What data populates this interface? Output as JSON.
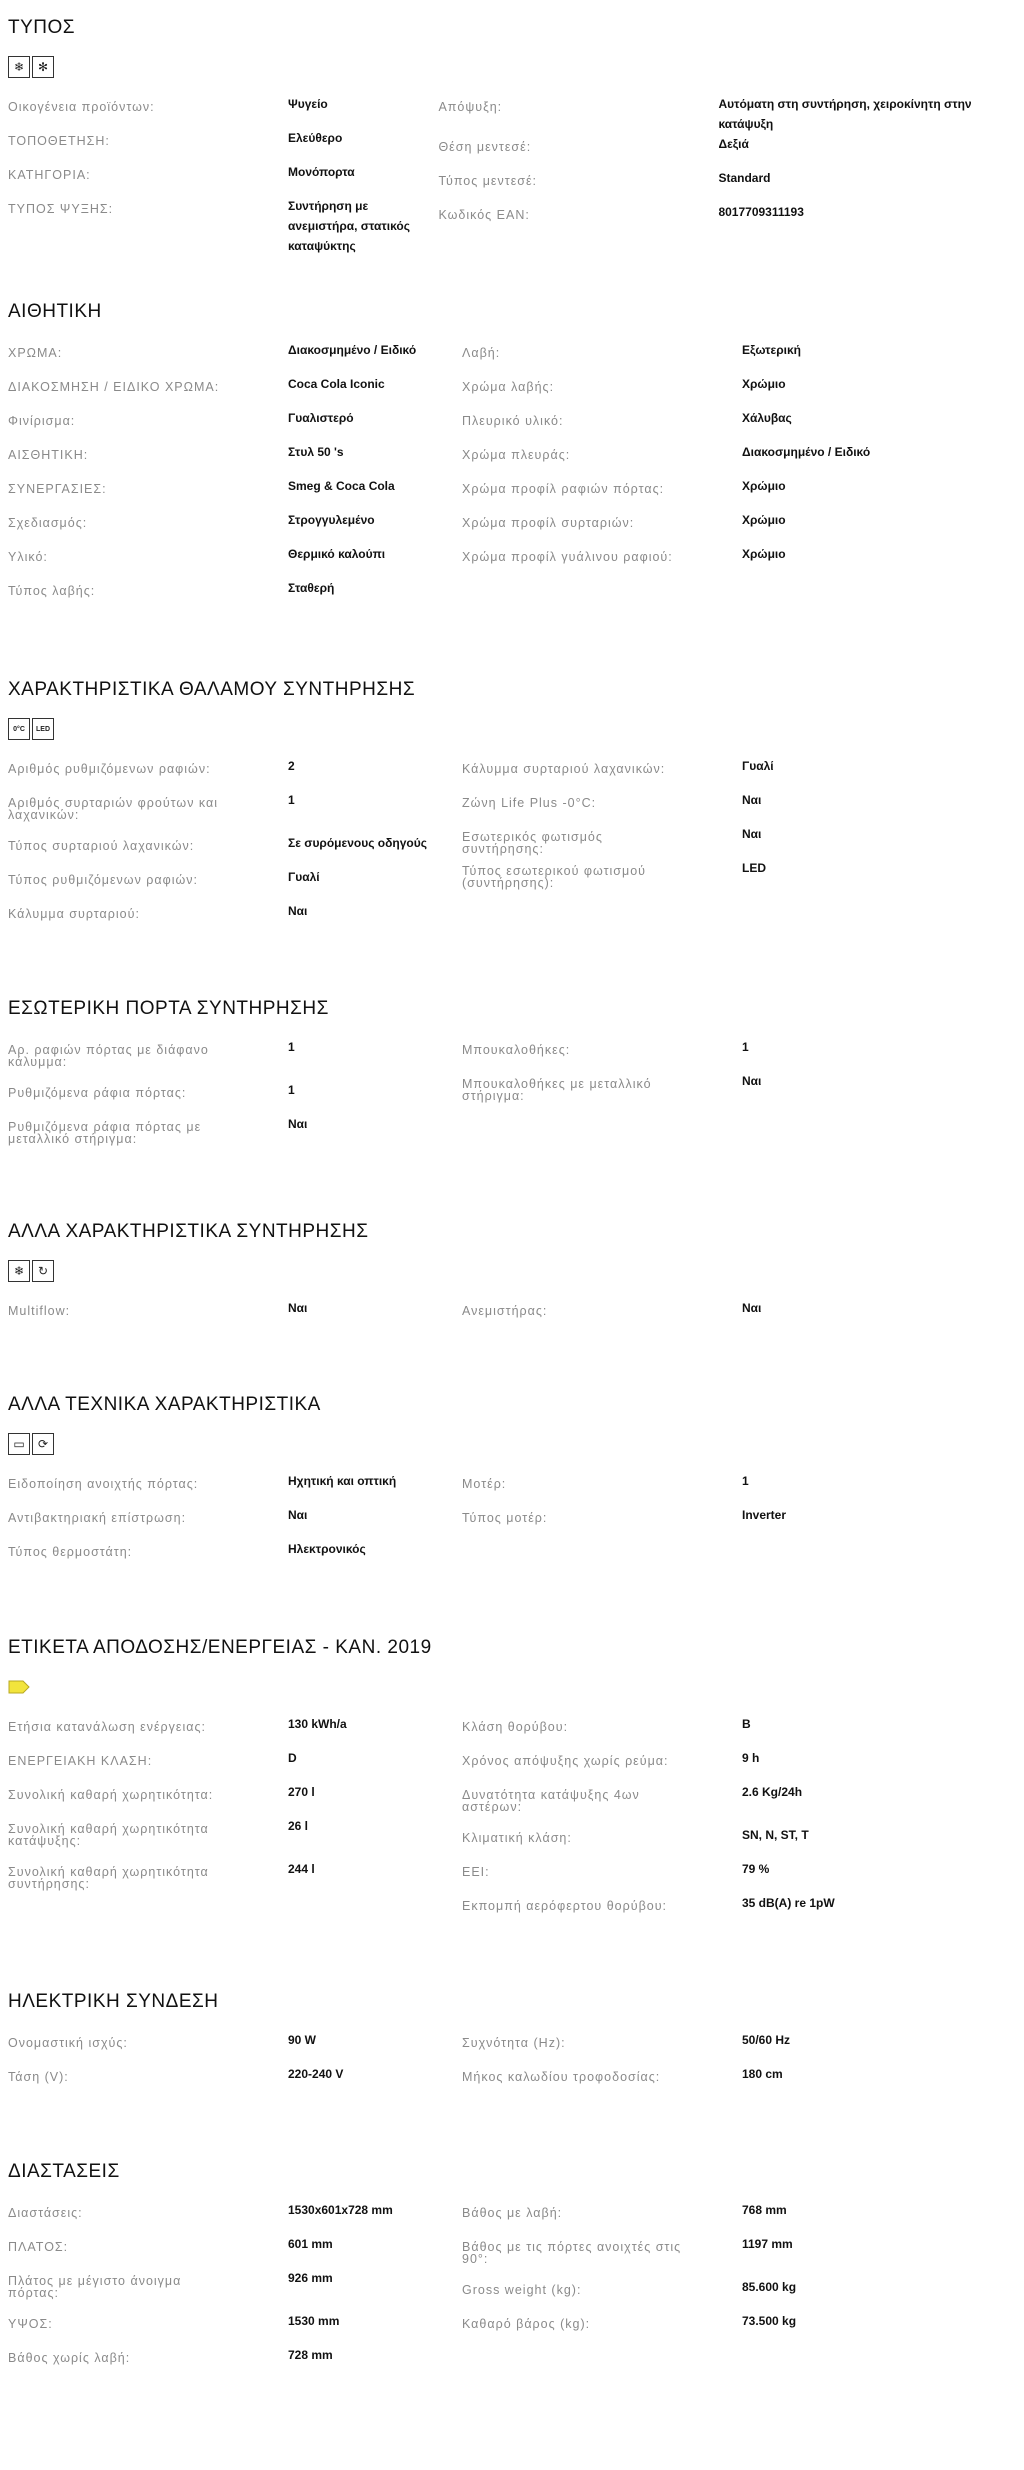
{
  "sections": [
    {
      "title": "ΤΥΠΟΣ",
      "icons": [
        "fan-snowflake-icon",
        "snowflake-drip-icon"
      ],
      "left": [
        [
          "Οικογένεια προϊόντων:",
          "Ψυγείο"
        ],
        [
          "ΤΟΠΟΘΕΤΗΣΗ:",
          "Ελεύθερο"
        ],
        [
          "ΚΑΤΗΓΟΡΙΑ:",
          "Μονόπορτα"
        ],
        [
          "ΤΥΠΟΣ ΨΥΞΗΣ:",
          "Συντήρηση με ανεμιστήρα, στατικός καταψύκτης"
        ]
      ],
      "right": [
        [
          "Απόψυξη:",
          "Αυτόματη στη συντήρηση, χειροκίνητη στην κατάψυξη"
        ],
        [
          "Θέση μεντεσέ:",
          "Δεξιά"
        ],
        [
          "Τύπος μεντεσέ:",
          "Standard"
        ],
        [
          "Κωδικός EAN:",
          "8017709311193"
        ]
      ]
    },
    {
      "title": "ΑΙΘΗΤΙΚΗ",
      "icons": [],
      "left": [
        [
          "ΧΡΩΜΑ:",
          "Διακοσμημένο / Ειδικό"
        ],
        [
          "ΔΙΑΚΟΣΜΗΣΗ / ΕΙΔΙΚΟ ΧΡΩΜΑ:",
          "Coca Cola Iconic"
        ],
        [
          "Φινίρισμα:",
          "Γυαλιστερό"
        ],
        [
          "ΑΙΣΘΗΤΙΚΗ:",
          "Στυλ 50 's"
        ],
        [
          "ΣΥΝΕΡΓΑΣΙΕΣ:",
          "Smeg & Coca Cola"
        ],
        [
          "Σχεδιασμός:",
          "Στρογγυλεμένο"
        ],
        [
          "Υλικό:",
          "Θερμικό καλούπι"
        ],
        [
          "Τύπος λαβής:",
          "Σταθερή"
        ]
      ],
      "right": [
        [
          "Λαβή:",
          "Εξωτερική"
        ],
        [
          "Χρώμα λαβής:",
          "Χρώμιο"
        ],
        [
          "Πλευρικό υλικό:",
          "Χάλυβας"
        ],
        [
          "Χρώμα πλευράς:",
          "Διακοσμημένο / Ειδικό"
        ],
        [
          "Χρώμα προφίλ ραφιών πόρτας:",
          "Χρώμιο"
        ],
        [
          "Χρώμα προφίλ συρταριών:",
          "Χρώμιο"
        ],
        [
          "Χρώμα προφίλ γυάλινου ραφιού:",
          "Χρώμιο"
        ]
      ]
    },
    {
      "title": "ΧΑΡΑΚΤΗΡΙΣΤΙΚΑ ΘΑΛΑΜΟΥ ΣΥΝΤΗΡΗΣΗΣ",
      "icons": [
        "zero-degree-zone-icon",
        "led-light-icon"
      ],
      "left": [
        [
          "Αριθμός ρυθμιζόμενων ραφιών:",
          "2"
        ],
        [
          "Αριθμός συρταριών φρούτων και λαχανικών:",
          "1"
        ],
        [
          "Τύπος συρταριού λαχανικών:",
          "Σε συρόμενους οδηγούς"
        ],
        [
          "Τύπος ρυθμιζόμενων ραφιών:",
          "Γυαλί"
        ],
        [
          "Κάλυμμα συρταριού:",
          "Ναι"
        ]
      ],
      "right": [
        [
          "Κάλυμμα συρταριού λαχανικών:",
          "Γυαλί"
        ],
        [
          "Ζώνη Life Plus -0°C:",
          "Ναι"
        ],
        [
          "Εσωτερικός φωτισμός συντήρησης:",
          "Ναι"
        ],
        [
          "Τύπος εσωτερικού φωτισμού (συντήρησης):",
          "LED"
        ]
      ]
    },
    {
      "title": "ΕΣΩΤΕΡΙΚΗ ΠΟΡΤΑ ΣΥΝΤΗΡΗΣΗΣ",
      "icons": [],
      "left": [
        [
          "Αρ. ραφιών πόρτας με διάφανο κάλυμμα:",
          "1"
        ],
        [
          "Ρυθμιζόμενα ράφια πόρτας:",
          "1"
        ],
        [
          "Ρυθμιζόμενα ράφια πόρτας με μεταλλικό στήριγμα:",
          "Ναι"
        ]
      ],
      "right": [
        [
          "Μπουκαλοθήκες:",
          "1"
        ],
        [
          "Μπουκαλοθήκες με μεταλλικό στήριγμα:",
          "Ναι"
        ]
      ]
    },
    {
      "title": "ΑΛΛΑ ΧΑΡΑΚΤΗΡΙΣΤΙΚΑ ΣΥΝΤΗΡΗΣΗΣ",
      "icons": [
        "multiflow-fan-icon",
        "fan-cycle-icon"
      ],
      "left": [
        [
          "Multiflow:",
          "Ναι"
        ]
      ],
      "right": [
        [
          "Ανεμιστήρας:",
          "Ναι"
        ]
      ]
    },
    {
      "title": "ΑΛΛΑ ΤΕΧΝΙΚΑ ΧΑΡΑΚΤΗΡΙΣΤΙΚΑ",
      "icons": [
        "door-alarm-icon",
        "inverter-icon"
      ],
      "left": [
        [
          "Ειδοποίηση ανοιχτής πόρτας:",
          "Ηχητική και οπτική"
        ],
        [
          "Αντιβακτηριακή επίστρωση:",
          "Ναι"
        ],
        [
          "Τύπος θερμοστάτη:",
          "Ηλεκτρονικός"
        ]
      ],
      "right": [
        [
          "Μοτέρ:",
          "1"
        ],
        [
          "Τύπος μοτέρ:",
          "Inverter"
        ]
      ]
    },
    {
      "title": "ΕΤΙΚΕΤΑ ΑΠΟΔΟΣΗΣ/ΕΝΕΡΓΕΙΑΣ - ΚΑΝ. 2019",
      "icons": [
        "energy-class-label-icon"
      ],
      "left": [
        [
          "Ετήσια κατανάλωση ενέργειας:",
          "130 kWh/a"
        ],
        [
          "ΕΝΕΡΓΕΙΑΚΗ ΚΛΑΣΗ:",
          "D"
        ],
        [
          "Συνολική καθαρή χωρητικότητα:",
          "270 l"
        ],
        [
          "Συνολική καθαρή χωρητικότητα κατάψυξης:",
          "26 l"
        ],
        [
          "Συνολική καθαρή χωρητικότητα συντήρησης:",
          "244 l"
        ]
      ],
      "right": [
        [
          "Κλάση θορύβου:",
          "B"
        ],
        [
          "Χρόνος απόψυξης χωρίς ρεύμα:",
          "9 h"
        ],
        [
          "Δυνατότητα κατάψυξης 4ων αστέρων:",
          "2.6 Kg/24h"
        ],
        [
          "Κλιματική κλάση:",
          "SN, N, ST, T"
        ],
        [
          "EEI:",
          "79 %"
        ],
        [
          "Εκπομπή αερόφερτου θορύβου:",
          "35 dB(A) re 1pW"
        ]
      ]
    },
    {
      "title": "ΗΛΕΚΤΡΙΚΗ ΣΥΝΔΕΣΗ",
      "icons": [],
      "left": [
        [
          "Ονομαστική ισχύς:",
          "90 W"
        ],
        [
          "Τάση (V):",
          "220-240 V"
        ]
      ],
      "right": [
        [
          "Συχνότητα (Hz):",
          "50/60 Hz"
        ],
        [
          "Μήκος καλωδίου τροφοδοσίας:",
          "180 cm"
        ]
      ]
    },
    {
      "title": "ΔΙΑΣΤΑΣΕΙΣ",
      "icons": [],
      "left": [
        [
          "Διαστάσεις:",
          "1530x601x728 mm"
        ],
        [
          "ΠΛΑΤΟΣ:",
          "601 mm"
        ],
        [
          "Πλάτος με μέγιστο άνοιγμα πόρτας:",
          "926 mm"
        ],
        [
          "ΥΨΟΣ:",
          "1530 mm"
        ],
        [
          "Βάθος χωρίς λαβή:",
          "728 mm"
        ]
      ],
      "right": [
        [
          "Βάθος με λαβή:",
          "768 mm"
        ],
        [
          "Βάθος με τις πόρτες ανοιχτές στις 90°:",
          "1197 mm"
        ],
        [
          "Gross weight (kg):",
          "85.600 kg"
        ],
        [
          "Καθαρό βάρος (kg):",
          "73.500 kg"
        ]
      ]
    }
  ],
  "colors": {
    "label": "#8a8a8a",
    "value": "#111111",
    "energy_label": "#f2e43c"
  }
}
